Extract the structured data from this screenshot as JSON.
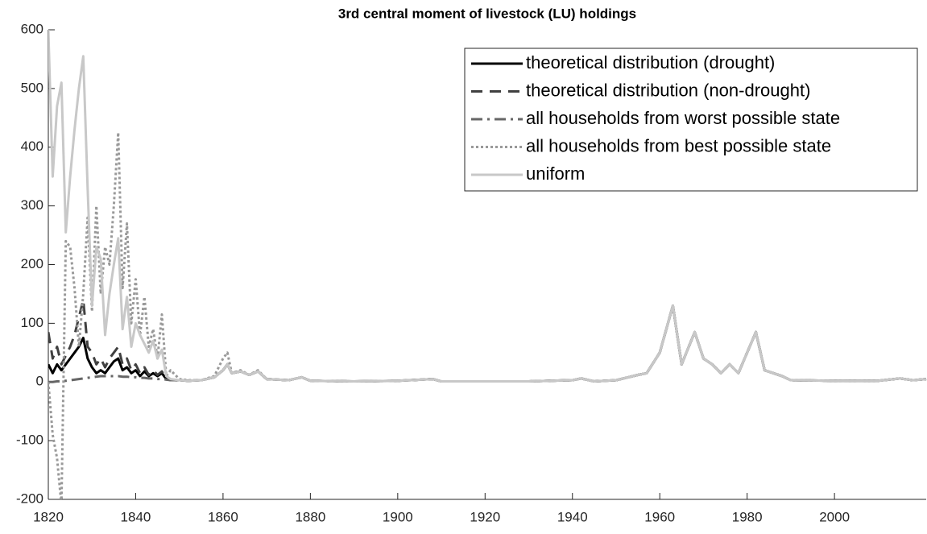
{
  "chart_data": {
    "type": "line",
    "title": "3rd central moment of livestock (LU) holdings",
    "x": [
      1820,
      1821,
      1822,
      1823,
      1824,
      1825,
      1826,
      1827,
      1828,
      1829,
      1830,
      1831,
      1832,
      1833,
      1834,
      1835,
      1836,
      1837,
      1838,
      1839,
      1840,
      1841,
      1842,
      1843,
      1844,
      1845,
      1846,
      1847,
      1848,
      1850,
      1852,
      1855,
      1858,
      1860,
      1861,
      1862,
      1864,
      1866,
      1868,
      1870,
      1875,
      1878,
      1880,
      1890,
      1900,
      1908,
      1910,
      1920,
      1930,
      1940,
      1942,
      1945,
      1950,
      1955,
      1957,
      1960,
      1963,
      1965,
      1968,
      1970,
      1972,
      1974,
      1976,
      1978,
      1982,
      1984,
      1986,
      1988,
      1990,
      2000,
      2010,
      2015,
      2018,
      2021
    ],
    "series": [
      {
        "name": "theoretical distribution (drought)",
        "color": "#000000",
        "line_style": "solid",
        "values": [
          30,
          15,
          30,
          20,
          30,
          40,
          50,
          60,
          75,
          40,
          25,
          15,
          20,
          15,
          25,
          35,
          40,
          20,
          25,
          15,
          20,
          10,
          18,
          10,
          15,
          10,
          15,
          5,
          3,
          3,
          2,
          3,
          8,
          20,
          30,
          15,
          18,
          12,
          18,
          5,
          3,
          8,
          2,
          1,
          2,
          5,
          1,
          1,
          1,
          3,
          6,
          1,
          3,
          12,
          15,
          50,
          130,
          30,
          85,
          40,
          30,
          15,
          30,
          15,
          85,
          20,
          15,
          10,
          3,
          2,
          2,
          6,
          3,
          5
        ]
      },
      {
        "name": "theoretical distribution (non-drought)",
        "color": "#404040",
        "line_style": "dashed",
        "values": [
          85,
          40,
          60,
          30,
          45,
          60,
          80,
          110,
          140,
          60,
          50,
          30,
          40,
          25,
          40,
          50,
          60,
          30,
          40,
          20,
          30,
          15,
          25,
          12,
          20,
          12,
          18,
          6,
          4,
          3,
          2,
          3,
          8,
          20,
          30,
          15,
          18,
          12,
          18,
          5,
          3,
          8,
          2,
          1,
          2,
          5,
          1,
          1,
          1,
          3,
          6,
          1,
          3,
          12,
          15,
          50,
          130,
          30,
          85,
          40,
          30,
          15,
          30,
          15,
          85,
          20,
          15,
          10,
          3,
          2,
          2,
          6,
          3,
          5
        ]
      },
      {
        "name": "all households from worst possible state",
        "color": "#666666",
        "line_style": "dashdot",
        "values": [
          0,
          0,
          1,
          1,
          2,
          3,
          4,
          5,
          6,
          7,
          8,
          9,
          10,
          10,
          10,
          10,
          10,
          9,
          9,
          8,
          8,
          7,
          7,
          6,
          6,
          5,
          5,
          4,
          3,
          3,
          2,
          3,
          8,
          20,
          30,
          15,
          18,
          12,
          18,
          5,
          3,
          8,
          2,
          1,
          2,
          5,
          1,
          1,
          1,
          3,
          6,
          1,
          3,
          12,
          15,
          50,
          130,
          30,
          85,
          40,
          30,
          15,
          30,
          15,
          85,
          20,
          15,
          10,
          3,
          2,
          2,
          6,
          3,
          5
        ]
      },
      {
        "name": "all households from best possible state",
        "color": "#999999",
        "line_style": "dotted",
        "values": [
          0,
          -90,
          -130,
          -210,
          240,
          230,
          160,
          60,
          150,
          280,
          120,
          300,
          150,
          230,
          200,
          300,
          425,
          160,
          270,
          100,
          175,
          80,
          145,
          60,
          90,
          40,
          115,
          10,
          20,
          5,
          3,
          3,
          10,
          40,
          50,
          15,
          20,
          12,
          20,
          5,
          3,
          8,
          2,
          1,
          2,
          5,
          1,
          1,
          1,
          3,
          6,
          1,
          3,
          12,
          15,
          50,
          130,
          30,
          85,
          40,
          30,
          15,
          30,
          15,
          85,
          20,
          15,
          10,
          3,
          2,
          2,
          6,
          3,
          5
        ]
      },
      {
        "name": "uniform",
        "color": "#c8c8c8",
        "line_style": "solid",
        "values": [
          600,
          350,
          470,
          510,
          255,
          350,
          430,
          500,
          555,
          330,
          130,
          230,
          210,
          80,
          150,
          200,
          245,
          90,
          145,
          60,
          100,
          80,
          65,
          50,
          70,
          40,
          55,
          10,
          5,
          3,
          2,
          3,
          8,
          20,
          30,
          15,
          18,
          12,
          18,
          5,
          3,
          8,
          2,
          1,
          2,
          5,
          1,
          1,
          1,
          3,
          6,
          1,
          3,
          12,
          15,
          50,
          130,
          30,
          85,
          40,
          30,
          15,
          30,
          15,
          85,
          20,
          15,
          10,
          3,
          2,
          2,
          6,
          3,
          5
        ]
      }
    ],
    "xlim": [
      1820,
      2021
    ],
    "xticks": [
      1820,
      1840,
      1860,
      1880,
      1900,
      1920,
      1940,
      1960,
      1980,
      2000
    ],
    "ylim": [
      -200,
      600
    ],
    "yticks": [
      -200,
      -100,
      0,
      100,
      200,
      300,
      400,
      500,
      600
    ],
    "legend": "upper right"
  }
}
